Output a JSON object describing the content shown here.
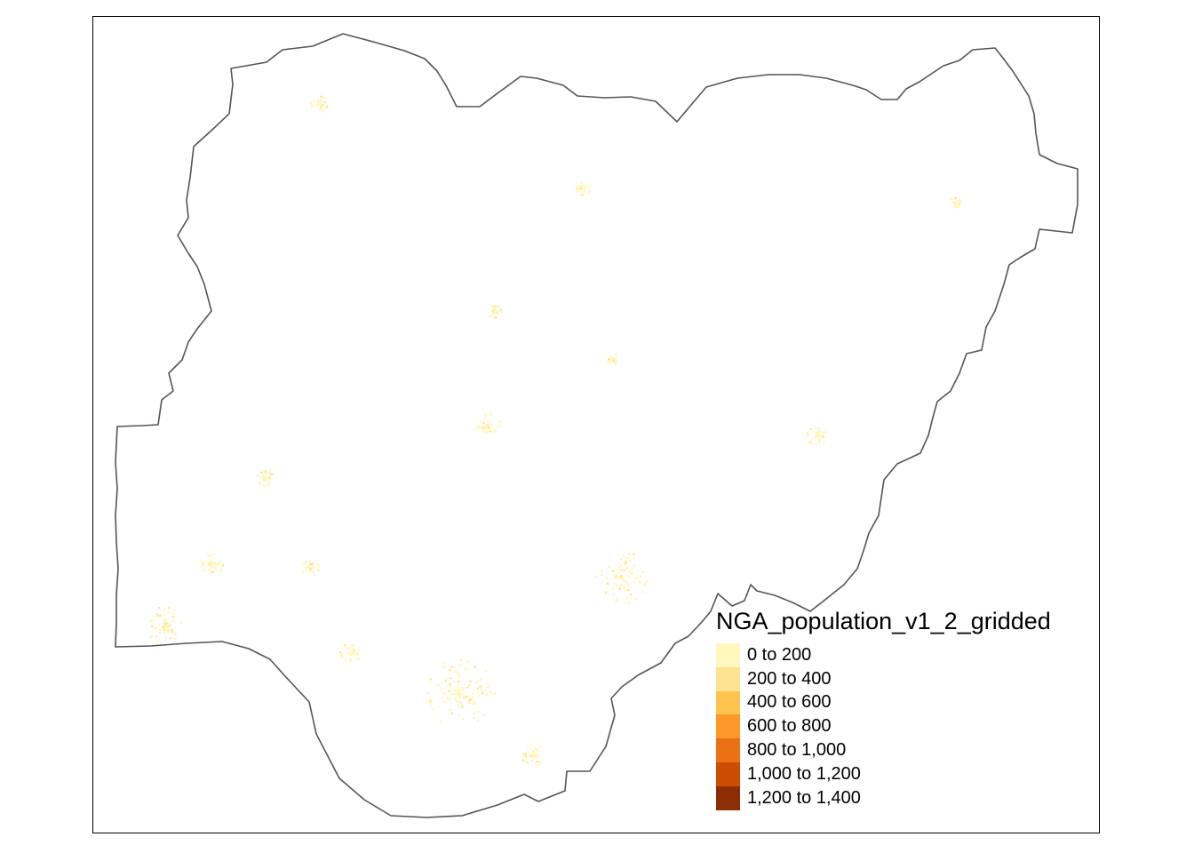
{
  "map": {
    "border_color": "#555555",
    "land_color": "#ffffff"
  },
  "legend": {
    "title": "NGA_population_v1_2_gridded",
    "classes": [
      {
        "label": "0 to 200",
        "color": "#FFF7BC"
      },
      {
        "label": "200 to 400",
        "color": "#FEE391"
      },
      {
        "label": "400 to 600",
        "color": "#FEC44F"
      },
      {
        "label": "600 to 800",
        "color": "#FE9929"
      },
      {
        "label": "800 to 1,000",
        "color": "#EC7014"
      },
      {
        "label": "1,000 to 1,200",
        "color": "#CC4C02"
      },
      {
        "label": "1,200 to 1,400",
        "color": "#8C2D04"
      }
    ]
  }
}
